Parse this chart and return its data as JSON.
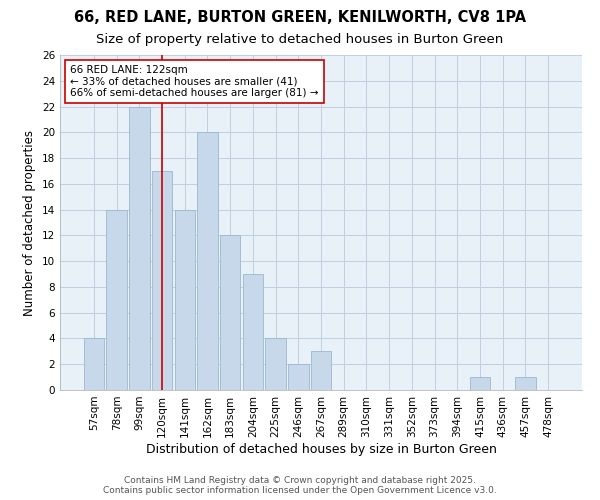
{
  "title": "66, RED LANE, BURTON GREEN, KENILWORTH, CV8 1PA",
  "subtitle": "Size of property relative to detached houses in Burton Green",
  "xlabel": "Distribution of detached houses by size in Burton Green",
  "ylabel": "Number of detached properties",
  "categories": [
    "57sqm",
    "78sqm",
    "99sqm",
    "120sqm",
    "141sqm",
    "162sqm",
    "183sqm",
    "204sqm",
    "225sqm",
    "246sqm",
    "267sqm",
    "289sqm",
    "310sqm",
    "331sqm",
    "352sqm",
    "373sqm",
    "394sqm",
    "415sqm",
    "436sqm",
    "457sqm",
    "478sqm"
  ],
  "values": [
    4,
    14,
    22,
    17,
    14,
    20,
    12,
    9,
    4,
    2,
    3,
    0,
    0,
    0,
    0,
    0,
    0,
    1,
    0,
    1,
    0
  ],
  "bar_color": "#c8d8eb",
  "bar_edge_color": "#9ab8d0",
  "bar_edge_width": 0.6,
  "grid_color": "#c0d0e0",
  "plot_bg_color": "#e8f0f8",
  "fig_bg_color": "#ffffff",
  "vline_x": 2.98,
  "vline_color": "#cc0000",
  "vline_label": "66 RED LANE: 122sqm",
  "annotation_line1": "← 33% of detached houses are smaller (41)",
  "annotation_line2": "66% of semi-detached houses are larger (81) →",
  "annotation_box_color": "white",
  "annotation_box_edge": "#cc0000",
  "ylim": [
    0,
    26
  ],
  "yticks": [
    0,
    2,
    4,
    6,
    8,
    10,
    12,
    14,
    16,
    18,
    20,
    22,
    24,
    26
  ],
  "title_fontsize": 10.5,
  "subtitle_fontsize": 9.5,
  "xlabel_fontsize": 9,
  "ylabel_fontsize": 8.5,
  "tick_fontsize": 7.5,
  "annotation_fontsize": 7.5,
  "footer_line1": "Contains HM Land Registry data © Crown copyright and database right 2025.",
  "footer_line2": "Contains public sector information licensed under the Open Government Licence v3.0.",
  "footer_fontsize": 6.5
}
